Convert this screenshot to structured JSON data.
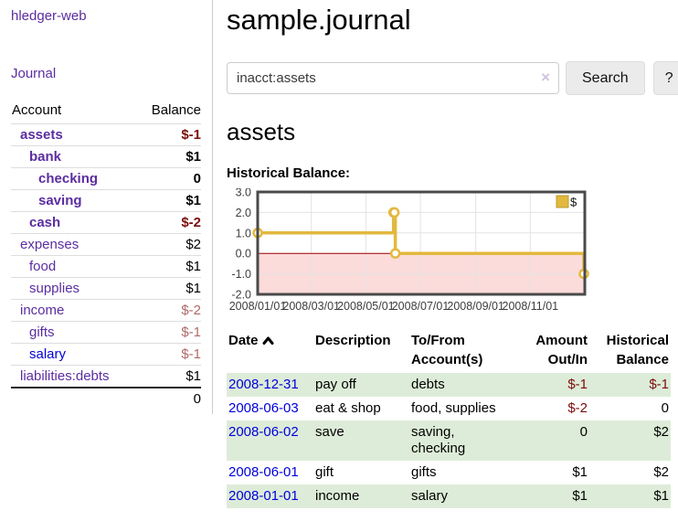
{
  "sidebar": {
    "brand": "hledger-web",
    "nav": {
      "journal": "Journal"
    },
    "accounts_table": {
      "headers": {
        "account": "Account",
        "balance": "Balance"
      },
      "rows": [
        {
          "name": "assets",
          "depth": 1,
          "bold": true,
          "balance": "$-1",
          "balance_style": "neg-strong",
          "link_style": "visited"
        },
        {
          "name": "bank",
          "depth": 2,
          "bold": true,
          "balance": "$1",
          "balance_style": "pos",
          "link_style": "visited"
        },
        {
          "name": "checking",
          "depth": 3,
          "bold": true,
          "balance": "0",
          "balance_style": "pos",
          "link_style": "visited"
        },
        {
          "name": "saving",
          "depth": 3,
          "bold": true,
          "balance": "$1",
          "balance_style": "pos",
          "link_style": "visited"
        },
        {
          "name": "cash",
          "depth": 2,
          "bold": true,
          "balance": "$-2",
          "balance_style": "neg-strong",
          "link_style": "visited"
        },
        {
          "name": "expenses",
          "depth": 1,
          "bold": false,
          "balance": "$2",
          "balance_style": "pos",
          "link_style": "visited"
        },
        {
          "name": "food",
          "depth": 2,
          "bold": false,
          "balance": "$1",
          "balance_style": "pos",
          "link_style": "visited"
        },
        {
          "name": "supplies",
          "depth": 2,
          "bold": false,
          "balance": "$1",
          "balance_style": "pos",
          "link_style": "visited"
        },
        {
          "name": "income",
          "depth": 1,
          "bold": false,
          "balance": "$-2",
          "balance_style": "neg-soft",
          "link_style": "visited"
        },
        {
          "name": "gifts",
          "depth": 2,
          "bold": false,
          "balance": "$-1",
          "balance_style": "neg-soft",
          "link_style": "visited"
        },
        {
          "name": "salary",
          "depth": 2,
          "bold": false,
          "balance": "$-1",
          "balance_style": "neg-soft",
          "link_style": "unvisited"
        },
        {
          "name": "liabilities:debts",
          "depth": 1,
          "bold": false,
          "balance": "$1",
          "balance_style": "pos",
          "link_style": "visited"
        }
      ],
      "total": "0"
    }
  },
  "header": {
    "title": "sample.journal"
  },
  "search": {
    "query": "inacct:assets",
    "clear_icon": "×",
    "search_label": "Search",
    "help_label": "?"
  },
  "account_page": {
    "heading": "assets",
    "chart_title": "Historical Balance:"
  },
  "chart_data": {
    "type": "line",
    "title": "Historical Balance",
    "step": true,
    "legend": [
      {
        "label": "$",
        "color": "#e3b83e"
      }
    ],
    "legend_position": "top-right",
    "grid": true,
    "x_range": [
      "2008-01-01",
      "2009-01-01"
    ],
    "x_ticks": [
      "2008/01/01",
      "2008/03/01",
      "2008/05/01",
      "2008/07/01",
      "2008/09/01",
      "2008/11/01"
    ],
    "y_ticks": [
      "3.0",
      "2.0",
      "1.0",
      "0.0",
      "-1.0",
      "-2.0"
    ],
    "ylim": [
      -2,
      3
    ],
    "points": [
      [
        "2008-01-01",
        1
      ],
      [
        "2008-06-01",
        2
      ],
      [
        "2008-06-02",
        2
      ],
      [
        "2008-06-03",
        0
      ],
      [
        "2008-12-31",
        -1
      ]
    ],
    "line_color": "#e3b83e",
    "marker": "open-circle",
    "negative_region_color": "#fcdbdb",
    "zero_line_color": "#a00000"
  },
  "register_table": {
    "sort": "ascending",
    "headers": {
      "date": "Date",
      "description": "Description",
      "accounts": "To/From Account(s)",
      "amount": "Amount Out/In",
      "balance": "Historical Balance"
    },
    "rows": [
      {
        "date": "2008-12-31",
        "description": "pay off",
        "accounts": "debts",
        "amount": "$-1",
        "balance": "$-1"
      },
      {
        "date": "2008-06-03",
        "description": "eat & shop",
        "accounts": "food, supplies",
        "amount": "$-2",
        "balance": "0"
      },
      {
        "date": "2008-06-02",
        "description": "save",
        "accounts": "saving, checking",
        "amount": "0",
        "balance": "$2"
      },
      {
        "date": "2008-06-01",
        "description": "gift",
        "accounts": "gifts",
        "amount": "$1",
        "balance": "$2"
      },
      {
        "date": "2008-01-01",
        "description": "income",
        "accounts": "salary",
        "amount": "$1",
        "balance": "$1"
      }
    ]
  },
  "colors": {
    "link_purple": "#5b2da0",
    "link_blue": "#0000dd",
    "negative_strong": "#7c0c0c",
    "negative_soft": "#b16969",
    "row_stripe_green": "#ddecd8",
    "chart_gold": "#e3b83e",
    "chart_negative_fill": "#fcdbdb",
    "chart_zero_line": "#a00000"
  }
}
